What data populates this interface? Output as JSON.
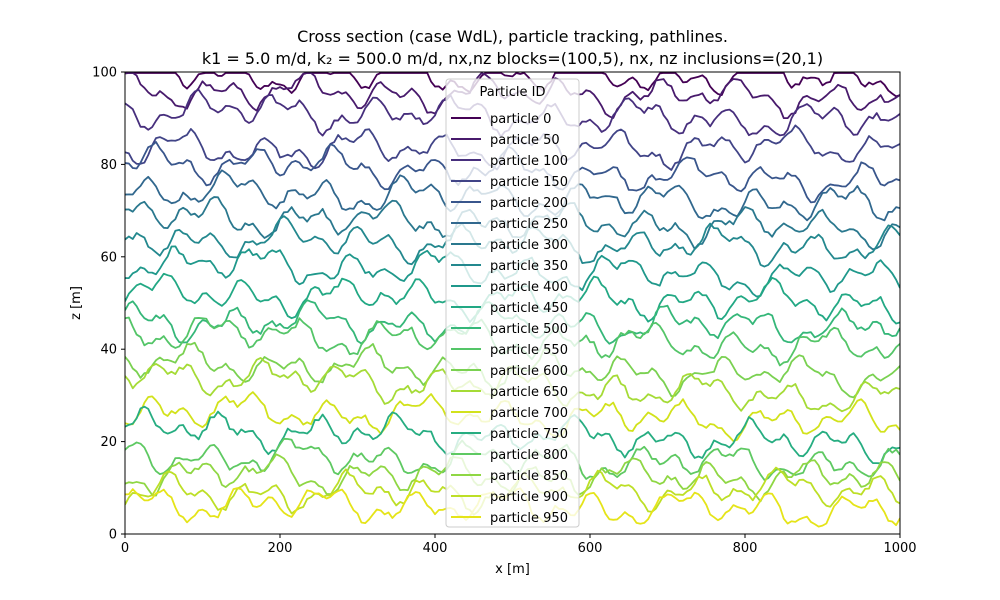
{
  "chart_data": {
    "type": "line",
    "title_line1": "Cross section (case WdL), particle tracking, pathlines.",
    "title_line2": "k1 = 5.0 m/d, k₂ = 500.0 m/d, nx,nz blocks=(100,5), nx, nz inclusions=(20,1)",
    "xlabel": "x [m]",
    "ylabel": "z [m]",
    "xlim": [
      0,
      1000
    ],
    "ylim": [
      0,
      100
    ],
    "xticks": [
      "0",
      "200",
      "400",
      "600",
      "800",
      "1000"
    ],
    "yticks": [
      "0",
      "20",
      "40",
      "60",
      "80",
      "100"
    ],
    "grid": false,
    "legend": {
      "title": "Particle ID",
      "placement": "upper-center"
    },
    "colormap": "viridis",
    "series": [
      {
        "name": "particle 0",
        "color": "#440154",
        "start_z": 99.5,
        "end_z": 99.0
      },
      {
        "name": "particle 50",
        "color": "#481a6c",
        "start_z": 96.0,
        "end_z": 94.5
      },
      {
        "name": "particle 100",
        "color": "#472f7d",
        "start_z": 92.0,
        "end_z": 89.0
      },
      {
        "name": "particle 150",
        "color": "#414487",
        "start_z": 83.0,
        "end_z": 84.0
      },
      {
        "name": "particle 200",
        "color": "#39568c",
        "start_z": 81.0,
        "end_z": 76.0
      },
      {
        "name": "particle 250",
        "color": "#31688e",
        "start_z": 74.5,
        "end_z": 71.0
      },
      {
        "name": "particle 300",
        "color": "#2a788e",
        "start_z": 69.0,
        "end_z": 66.0
      },
      {
        "name": "particle 350",
        "color": "#23888e",
        "start_z": 64.0,
        "end_z": 62.0
      },
      {
        "name": "particle 400",
        "color": "#1f988b",
        "start_z": 59.0,
        "end_z": 55.0
      },
      {
        "name": "particle 450",
        "color": "#22a884",
        "start_z": 52.0,
        "end_z": 50.0
      },
      {
        "name": "particle 500",
        "color": "#35b779",
        "start_z": 46.0,
        "end_z": 45.0
      },
      {
        "name": "particle 550",
        "color": "#54c568",
        "start_z": 44.0,
        "end_z": 40.0
      },
      {
        "name": "particle 600",
        "color": "#7ad151",
        "start_z": 37.0,
        "end_z": 34.0
      },
      {
        "name": "particle 650",
        "color": "#a5db36",
        "start_z": 35.0,
        "end_z": 29.0
      },
      {
        "name": "particle 700",
        "color": "#d2e21b",
        "start_z": 27.0,
        "end_z": 24.0
      },
      {
        "name": "particle 750",
        "color": "#26ad81",
        "start_z": 23.0,
        "end_z": 19.5
      },
      {
        "name": "particle 800",
        "color": "#5ec962",
        "start_z": 17.0,
        "end_z": 15.0
      },
      {
        "name": "particle 850",
        "color": "#8fd744",
        "start_z": 13.0,
        "end_z": 12.0
      },
      {
        "name": "particle 900",
        "color": "#bddf26",
        "start_z": 8.5,
        "end_z": 10.0
      },
      {
        "name": "particle 950",
        "color": "#e5e419",
        "start_z": 7.0,
        "end_z": 5.0
      }
    ]
  }
}
